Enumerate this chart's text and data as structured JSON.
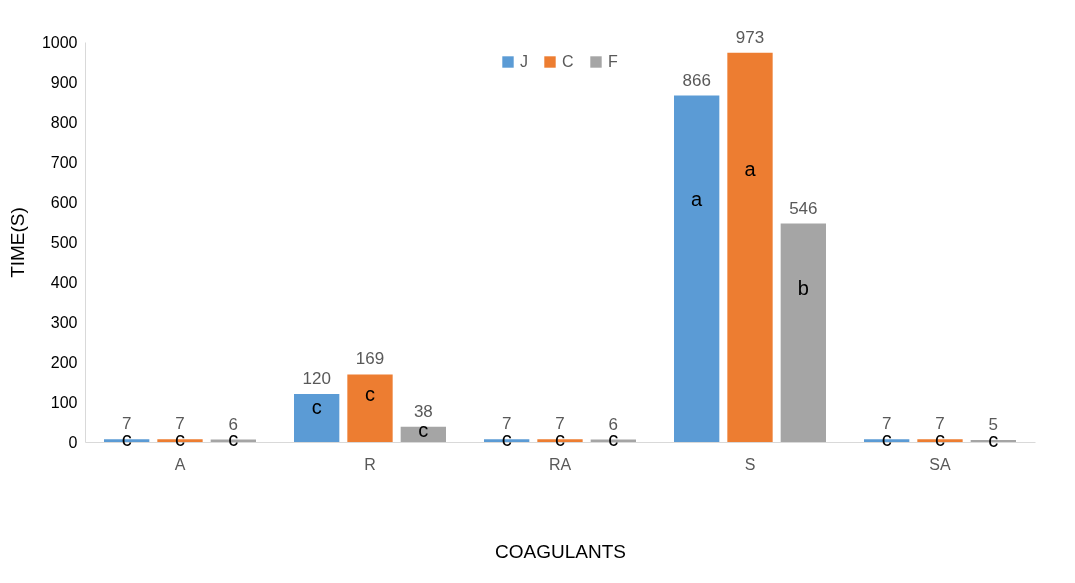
{
  "chart_data": {
    "type": "bar",
    "xlabel": "COAGULANTS",
    "ylabel": "TIME(S)",
    "categories": [
      "A",
      "R",
      "RA",
      "S",
      "SA"
    ],
    "series": [
      {
        "name": "J",
        "color": "#5b9bd5",
        "values": [
          7,
          120,
          7,
          866,
          7
        ]
      },
      {
        "name": "C",
        "color": "#ed7d31",
        "values": [
          7,
          169,
          7,
          973,
          7
        ]
      },
      {
        "name": "F",
        "color": "#a5a5a5",
        "values": [
          6,
          38,
          6,
          546,
          5
        ]
      }
    ],
    "ylim": [
      0,
      1000
    ],
    "yticks": [
      0,
      100,
      200,
      300,
      400,
      500,
      600,
      700,
      800,
      900,
      1000
    ],
    "data_labels": true,
    "legend": "top",
    "grid": false,
    "annotations": [
      "c",
      "c",
      "c",
      "c",
      "c",
      "c",
      "c",
      "c",
      "c",
      "a",
      "a",
      "b",
      "c",
      "c",
      "c"
    ]
  }
}
